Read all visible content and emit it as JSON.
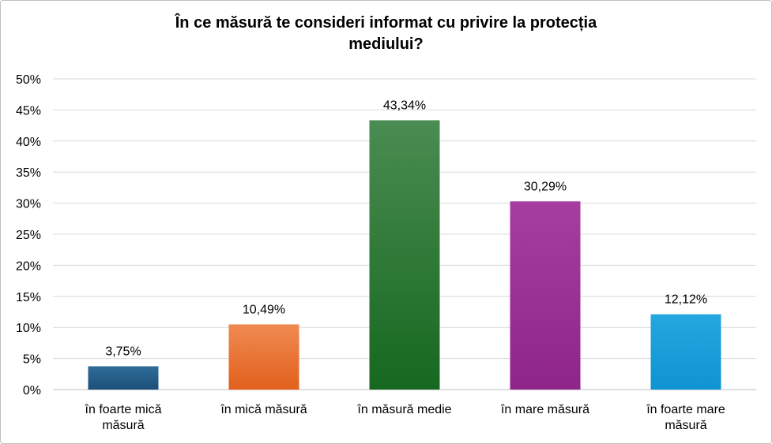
{
  "chart_data": {
    "type": "bar",
    "title_lines": [
      "În ce măsură te consideri informat cu privire la protecția",
      "mediului?"
    ],
    "categories": [
      [
        "în foarte mică",
        "măsură"
      ],
      [
        "în mică măsură"
      ],
      [
        "în măsură medie"
      ],
      [
        "în mare măsură"
      ],
      [
        "în foarte mare",
        "măsură"
      ]
    ],
    "values": [
      3.75,
      10.49,
      43.34,
      30.29,
      12.12
    ],
    "data_labels": [
      "3,75%",
      "10,49%",
      "43,34%",
      "30,29%",
      "12,12%"
    ],
    "ylim": [
      0,
      50
    ],
    "ytick_step": 5,
    "ytick_labels": [
      "0%",
      "5%",
      "10%",
      "15%",
      "20%",
      "25%",
      "30%",
      "35%",
      "40%",
      "45%",
      "50%"
    ],
    "bar_colors": [
      [
        "#2e6d99",
        "#1d4f78"
      ],
      [
        "#f08a52",
        "#e2601c"
      ],
      [
        "#4a8c52",
        "#16681f"
      ],
      [
        "#a63da0",
        "#8e258a"
      ],
      [
        "#25a7df",
        "#0f94d2"
      ]
    ],
    "gridlines": true,
    "legend": "none"
  }
}
